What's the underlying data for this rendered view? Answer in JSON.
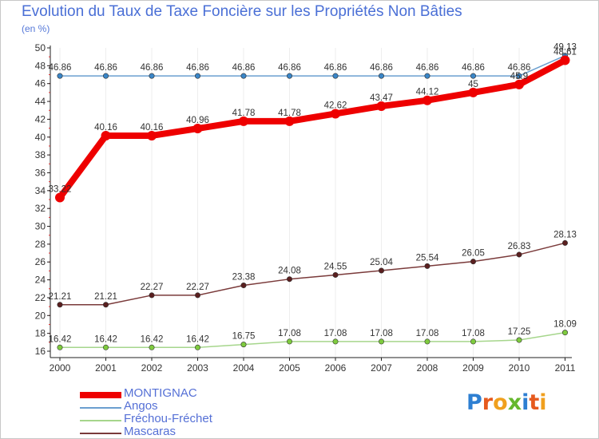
{
  "title": "Evolution du Taux de Taxe Foncière sur les Propriétés Non Bâties",
  "subtitle": "(en %)",
  "logo": {
    "letters": [
      "P",
      "r",
      "o",
      "x",
      "i",
      "t",
      "i"
    ],
    "colors": [
      "#2e7fd2",
      "#e65a1e",
      "#f0a01e",
      "#66b82e",
      "#2e7fd2",
      "#e65a1e",
      "#f0a01e"
    ]
  },
  "chart_data": {
    "type": "line",
    "categories": [
      "2000",
      "2001",
      "2002",
      "2003",
      "2004",
      "2005",
      "2006",
      "2007",
      "2008",
      "2009",
      "2010",
      "2011"
    ],
    "ylim": [
      16,
      50
    ],
    "yticks": [
      16,
      18,
      20,
      22,
      24,
      26,
      28,
      30,
      32,
      34,
      36,
      38,
      40,
      42,
      44,
      46,
      48,
      50
    ],
    "ylabel": "(en %)",
    "series": [
      {
        "name": "Angos",
        "color": "#6b9fcf",
        "marker": "#3a86c8",
        "values": [
          46.86,
          46.86,
          46.86,
          46.86,
          46.86,
          46.86,
          46.86,
          46.86,
          46.86,
          46.86,
          46.86,
          49.13
        ],
        "labels": [
          "46.86",
          "46.86",
          "46.86",
          "46.86",
          "46.86",
          "46.86",
          "46.86",
          "46.86",
          "46.86",
          "46.86",
          "46.86",
          "49.13"
        ]
      },
      {
        "name": "Mascaras",
        "color": "#7a3a3a",
        "marker": "#5a1f1f",
        "values": [
          21.21,
          21.21,
          22.27,
          22.27,
          23.38,
          24.08,
          24.55,
          25.04,
          25.54,
          26.05,
          26.83,
          28.13
        ],
        "labels": [
          "21.21",
          "21.21",
          "22.27",
          "22.27",
          "23.38",
          "24.08",
          "24.55",
          "25.04",
          "25.54",
          "26.05",
          "26.83",
          "28.13"
        ]
      },
      {
        "name": "Fréchou-Fréchet",
        "color": "#a6d68c",
        "marker": "#7ecb3e",
        "values": [
          16.42,
          16.42,
          16.42,
          16.42,
          16.75,
          17.08,
          17.08,
          17.08,
          17.08,
          17.08,
          17.25,
          18.09
        ],
        "labels": [
          "16.42",
          "16.42",
          "16.42",
          "16.42",
          "16.75",
          "17.08",
          "17.08",
          "17.08",
          "17.08",
          "17.08",
          "17.25",
          "18.09"
        ]
      },
      {
        "name": "MONTIGNAC",
        "color": "#ee0000",
        "marker": "#ee0000",
        "values": [
          33.22,
          40.16,
          40.16,
          40.96,
          41.78,
          41.78,
          42.62,
          43.47,
          44.12,
          45,
          45.9,
          48.61
        ],
        "labels": [
          "33.22",
          "40.16",
          "40.16",
          "40.96",
          "41.78",
          "41.78",
          "42.62",
          "43.47",
          "44.12",
          "45",
          "45.9",
          "48.61"
        ]
      }
    ],
    "legend": [
      "MONTIGNAC",
      "Angos",
      "Fréchou-Fréchet",
      "Mascaras"
    ]
  }
}
